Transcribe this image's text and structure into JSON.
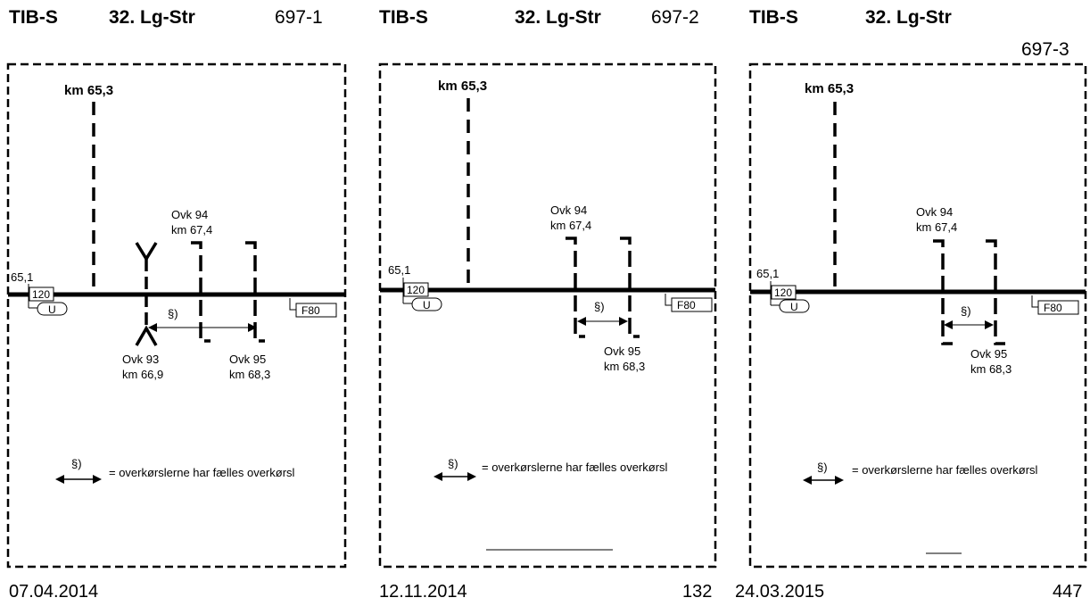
{
  "panels": [
    {
      "header": {
        "system": "TIB-S",
        "line": "32. Lg-Str",
        "page": "697-1"
      },
      "footer": {
        "date": "07.04.2014",
        "number": ""
      },
      "km_marker": "km 65,3",
      "start_km": "65,1",
      "speed": "120",
      "u_label": "U",
      "f_label": "F80",
      "crossing_symbol": "§)",
      "legend_text": "= overkørslerne har fælles overkørsl",
      "crossings": [
        {
          "name": "Ovk 93",
          "km": "km 66,9"
        },
        {
          "name": "Ovk 94",
          "km": "km 67,4"
        },
        {
          "name": "Ovk 95",
          "km": "km 68,3"
        }
      ]
    },
    {
      "header": {
        "system": "TIB-S",
        "line": "32. Lg-Str",
        "page": "697-2"
      },
      "footer": {
        "date": "12.11.2014",
        "number": "132"
      },
      "km_marker": "km 65,3",
      "start_km": "65,1",
      "speed": "120",
      "u_label": "U",
      "f_label": "F80",
      "crossing_symbol": "§)",
      "legend_text": "= overkørslerne har fælles overkørsl",
      "crossings": [
        {
          "name": "Ovk 94",
          "km": "km 67,4"
        },
        {
          "name": "Ovk 95",
          "km": "km 68,3"
        }
      ]
    },
    {
      "header": {
        "system": "TIB-S",
        "line": "32. Lg-Str",
        "page": "697-3"
      },
      "footer": {
        "date": "24.03.2015",
        "number": "447"
      },
      "km_marker": "km 65,3",
      "start_km": "65,1",
      "speed": "120",
      "u_label": "U",
      "f_label": "F80",
      "crossing_symbol": "§)",
      "legend_text": "= overkørslerne har fælles overkørsl",
      "crossings": [
        {
          "name": "Ovk 94",
          "km": "km 67,4"
        },
        {
          "name": "Ovk 95",
          "km": "km 68,3"
        }
      ]
    }
  ]
}
